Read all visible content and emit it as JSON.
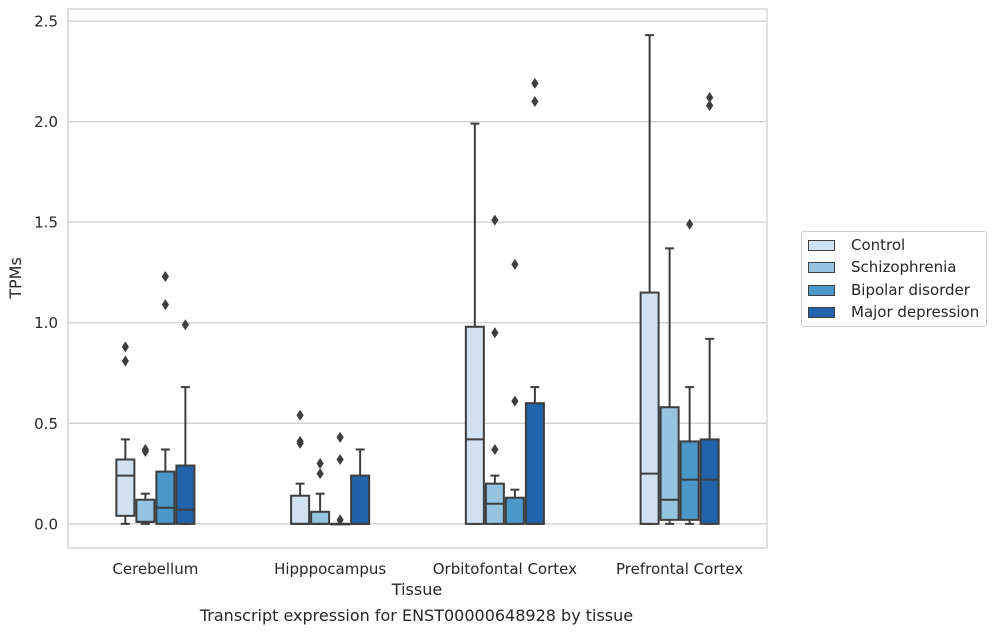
{
  "chart_data": {
    "type": "box",
    "title": "",
    "caption": "Transcript expression for ENST00000648928 by tissue",
    "xlabel": "Tissue",
    "ylabel": "TPMs",
    "ylim": [
      -0.12,
      2.56
    ],
    "yticks": [
      "0.0",
      "0.5",
      "1.0",
      "1.5",
      "2.0",
      "2.5"
    ],
    "ytick_values": [
      0.0,
      0.5,
      1.0,
      1.5,
      2.0,
      2.5
    ],
    "grid": "horizontal",
    "legend_position": "right",
    "categories": [
      "Cerebellum",
      "Hipppocampus",
      "Orbitofontal Cortex",
      "Prefrontal Cortex"
    ],
    "series": [
      {
        "name": "Control",
        "color": "#d0e1f2",
        "boxes": [
          {
            "whislo": 0.0,
            "q1": 0.04,
            "med": 0.24,
            "q3": 0.32,
            "whishi": 0.42,
            "fliers": [
              0.81,
              0.88
            ]
          },
          {
            "whislo": 0.0,
            "q1": 0.0,
            "med": 0.0,
            "q3": 0.14,
            "whishi": 0.2,
            "fliers": [
              0.4,
              0.41,
              0.54
            ]
          },
          {
            "whislo": 0.0,
            "q1": 0.0,
            "med": 0.42,
            "q3": 0.98,
            "whishi": 1.99,
            "fliers": []
          },
          {
            "whislo": 0.0,
            "q1": 0.0,
            "med": 0.25,
            "q3": 1.15,
            "whishi": 2.43,
            "fliers": []
          }
        ]
      },
      {
        "name": "Schizophrenia",
        "color": "#94c4df",
        "boxes": [
          {
            "whislo": 0.0,
            "q1": 0.01,
            "med": 0.01,
            "q3": 0.12,
            "whishi": 0.15,
            "fliers": [
              0.36,
              0.37
            ]
          },
          {
            "whislo": 0.0,
            "q1": 0.0,
            "med": 0.0,
            "q3": 0.06,
            "whishi": 0.15,
            "fliers": [
              0.25,
              0.3
            ]
          },
          {
            "whislo": 0.0,
            "q1": 0.0,
            "med": 0.1,
            "q3": 0.2,
            "whishi": 0.24,
            "fliers": [
              0.37,
              0.95,
              1.51
            ]
          },
          {
            "whislo": 0.0,
            "q1": 0.02,
            "med": 0.12,
            "q3": 0.58,
            "whishi": 1.37,
            "fliers": []
          }
        ]
      },
      {
        "name": "Bipolar disorder",
        "color": "#4a98c9",
        "boxes": [
          {
            "whislo": 0.0,
            "q1": 0.0,
            "med": 0.08,
            "q3": 0.26,
            "whishi": 0.37,
            "fliers": [
              1.09,
              1.23
            ]
          },
          {
            "whislo": 0.0,
            "q1": 0.0,
            "med": 0.0,
            "q3": 0.0,
            "whishi": 0.0,
            "fliers": [
              0.02,
              0.32,
              0.43
            ]
          },
          {
            "whislo": 0.0,
            "q1": 0.0,
            "med": 0.0,
            "q3": 0.13,
            "whishi": 0.17,
            "fliers": [
              0.61,
              1.29
            ]
          },
          {
            "whislo": 0.0,
            "q1": 0.02,
            "med": 0.22,
            "q3": 0.41,
            "whishi": 0.68,
            "fliers": [
              1.49
            ]
          }
        ]
      },
      {
        "name": "Major depression",
        "color": "#2163aa",
        "boxes": [
          {
            "whislo": 0.0,
            "q1": 0.0,
            "med": 0.07,
            "q3": 0.29,
            "whishi": 0.68,
            "fliers": [
              0.99
            ]
          },
          {
            "whislo": 0.0,
            "q1": 0.0,
            "med": 0.0,
            "q3": 0.24,
            "whishi": 0.37,
            "fliers": []
          },
          {
            "whislo": 0.0,
            "q1": 0.0,
            "med": 0.0,
            "q3": 0.6,
            "whishi": 0.68,
            "fliers": [
              2.1,
              2.19
            ]
          },
          {
            "whislo": 0.0,
            "q1": 0.0,
            "med": 0.22,
            "q3": 0.42,
            "whishi": 0.92,
            "fliers": [
              2.08,
              2.12
            ]
          }
        ]
      }
    ]
  }
}
